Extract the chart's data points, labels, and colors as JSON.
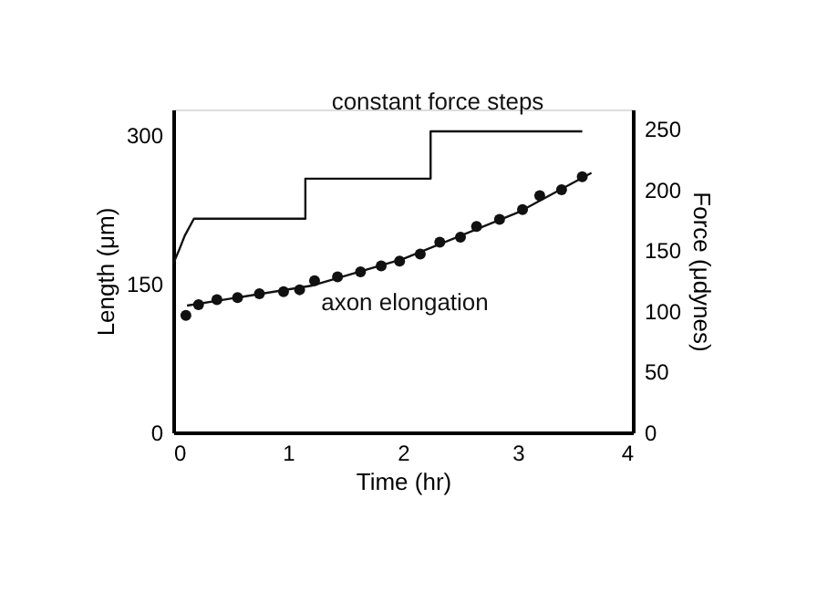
{
  "chart_data": {
    "type": "scatter",
    "xlabel": "Time (hr)",
    "ylabel": "Length (μm)",
    "y2label": "Force (μdynes)",
    "xlim": [
      0,
      4
    ],
    "xticks": [
      0,
      1,
      2,
      3,
      4
    ],
    "ylim": [
      0,
      326
    ],
    "yticks": [
      0,
      150,
      300
    ],
    "y2lim": [
      0,
      266
    ],
    "y2ticks": [
      0,
      50,
      100,
      150,
      200,
      250
    ],
    "grid": false,
    "annotations": [
      "constant force steps",
      "axon elongation"
    ],
    "series": [
      {
        "type": "scatter",
        "marker": "circle",
        "color": "#111111",
        "x": [
          0.11,
          0.22,
          0.38,
          0.56,
          0.75,
          0.96,
          1.1,
          1.23,
          1.43,
          1.63,
          1.81,
          1.97,
          2.15,
          2.32,
          2.5,
          2.64,
          2.84,
          3.04,
          3.19,
          3.38,
          3.56
        ],
        "values": [
          118,
          129,
          134,
          136,
          140,
          142,
          144,
          153,
          157,
          162,
          168,
          173,
          180,
          192,
          197,
          208,
          215,
          225,
          239,
          245,
          258
        ]
      },
      {
        "type": "line",
        "color": "#111111",
        "x": [
          0.12,
          1.2,
          2.0,
          3.0,
          3.64
        ],
        "values": [
          128,
          148,
          175,
          222,
          262
        ]
      },
      {
        "type": "line",
        "axis": "y2",
        "color": "#111111",
        "x": [
          0,
          0.05,
          0.1,
          0.18,
          1.15,
          1.15,
          2.24,
          2.24,
          3.56
        ],
        "values": [
          139,
          150,
          162,
          176,
          176,
          209,
          209,
          248,
          248
        ]
      }
    ]
  }
}
